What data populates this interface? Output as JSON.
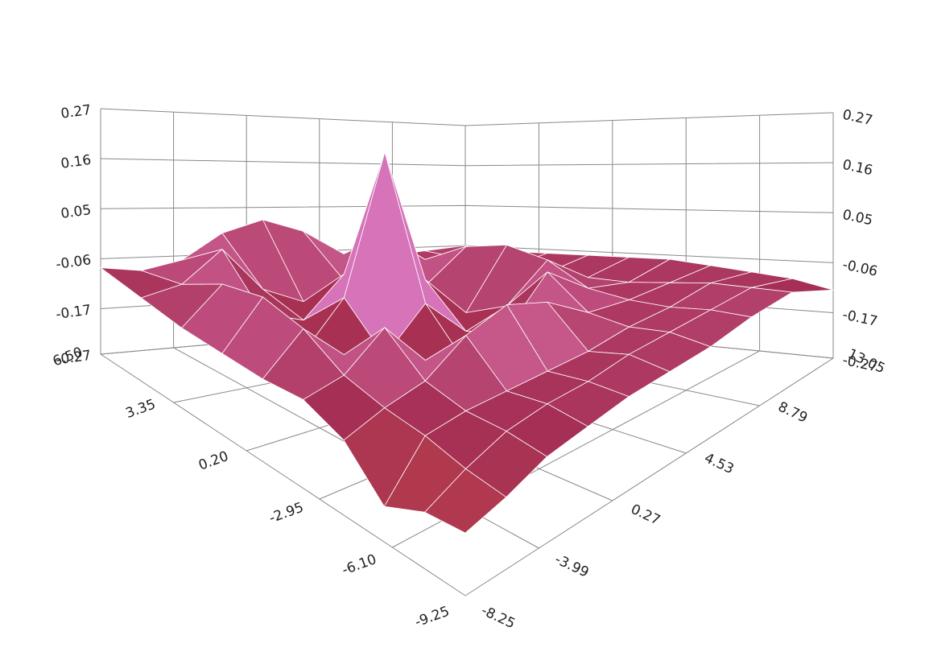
{
  "chart_data": {
    "type": "surface",
    "x": [
      -9.25,
      -7.5,
      -5.75,
      -4,
      -2.25,
      -0.5,
      1.25,
      3,
      4.75,
      6.5
    ],
    "y": [
      -8.25,
      -5.88,
      -3.52,
      -1.15,
      1.22,
      3.58,
      5.95,
      8.32,
      10.68,
      13.05
    ],
    "z": [
      [
        -0.15,
        -0.16,
        -0.2,
        -0.12,
        -0.09,
        -0.1,
        -0.1,
        -0.1,
        -0.09,
        -0.08
      ],
      [
        -0.13,
        -0.12,
        -0.1,
        -0.09,
        -0.07,
        -0.02,
        0.0,
        -0.02,
        -0.07,
        -0.09
      ],
      [
        -0.1,
        -0.09,
        -0.09,
        -0.07,
        0.0,
        -0.1,
        -0.14,
        -0.1,
        0.0,
        -0.07
      ],
      [
        -0.09,
        -0.08,
        -0.09,
        -0.01,
        -0.1,
        -0.13,
        -0.04,
        -0.13,
        -0.1,
        -0.01
      ],
      [
        -0.08,
        -0.08,
        -0.09,
        0.02,
        -0.14,
        -0.04,
        0.27,
        -0.04,
        -0.14,
        0.02
      ],
      [
        -0.08,
        -0.07,
        -0.09,
        -0.01,
        -0.1,
        -0.13,
        -0.04,
        -0.13,
        -0.1,
        -0.01
      ],
      [
        -0.08,
        -0.07,
        -0.08,
        -0.07,
        0.0,
        -0.1,
        -0.14,
        -0.1,
        0.0,
        -0.07
      ],
      [
        -0.07,
        -0.07,
        -0.08,
        -0.08,
        -0.07,
        -0.02,
        0.0,
        -0.02,
        -0.07,
        -0.08
      ],
      [
        -0.07,
        -0.07,
        -0.07,
        -0.08,
        -0.09,
        -0.09,
        -0.09,
        -0.09,
        -0.08,
        -0.07
      ],
      [
        -0.12,
        -0.1,
        -0.09,
        -0.08,
        -0.07,
        -0.07,
        -0.07,
        -0.07,
        -0.07,
        -0.06
      ]
    ],
    "xlim": [
      -9.25,
      6.5
    ],
    "xticks": [
      -9.25,
      {
        "value": -6.1,
        "label": "-6.10"
      },
      -2.95,
      {
        "value": 0.2,
        "label": "0.20"
      },
      3.35,
      {
        "value": 6.5,
        "label": "6.50"
      }
    ],
    "ylim": [
      -8.25,
      13.05
    ],
    "yticks": [
      -8.25,
      -3.99,
      0.27,
      4.53,
      8.79,
      13.05
    ],
    "zlim": [
      -0.27,
      0.27
    ],
    "zticks": [
      -0.27,
      -0.17,
      -0.06,
      0.05,
      0.16,
      0.27
    ],
    "colorscale": [
      "#d9661f",
      "#b8404a",
      "#a52f55",
      "#e27ab8",
      "#9a4fc0",
      "#3a1650",
      "#0d0615"
    ],
    "grid": true
  }
}
